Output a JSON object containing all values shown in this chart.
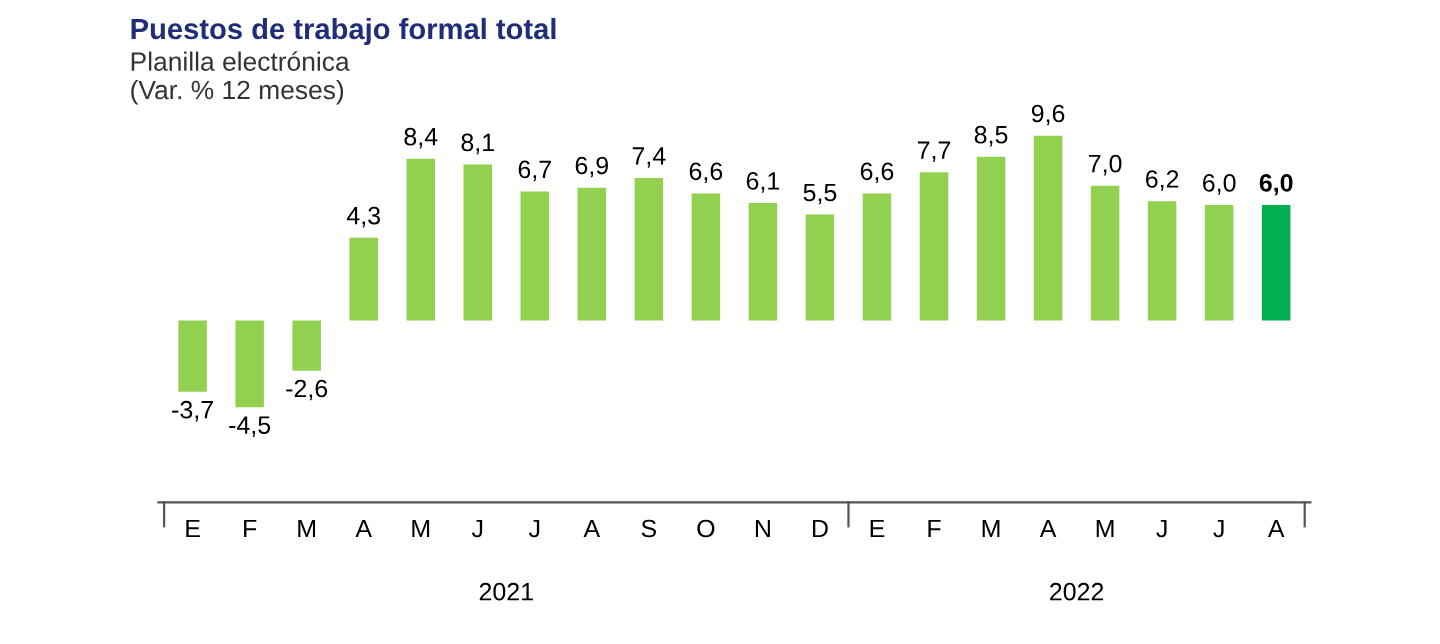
{
  "chart_data": {
    "type": "bar",
    "title": "Puestos de trabajo formal total",
    "subtitle": "Planilla electrónica\n(Var. % 12 meses)",
    "categories": [
      "E",
      "F",
      "M",
      "A",
      "M",
      "J",
      "J",
      "A",
      "S",
      "O",
      "N",
      "D",
      "E",
      "F",
      "M",
      "A",
      "M",
      "J",
      "J",
      "A"
    ],
    "values": [
      -3.7,
      -4.5,
      -2.6,
      4.3,
      8.4,
      8.1,
      6.7,
      6.9,
      7.4,
      6.6,
      6.1,
      5.5,
      6.6,
      7.7,
      8.5,
      9.6,
      7.0,
      6.2,
      6.0,
      6.0
    ],
    "value_labels": [
      "-3,7",
      "-4,5",
      "-2,6",
      "4,3",
      "8,4",
      "8,1",
      "6,7",
      "6,9",
      "7,4",
      "6,6",
      "6,1",
      "5,5",
      "6,6",
      "7,7",
      "8,5",
      "9,6",
      "7,0",
      "6,2",
      "6,0",
      "6,0"
    ],
    "colors": [
      "#92d050",
      "#92d050",
      "#92d050",
      "#92d050",
      "#92d050",
      "#92d050",
      "#92d050",
      "#92d050",
      "#92d050",
      "#92d050",
      "#92d050",
      "#92d050",
      "#92d050",
      "#92d050",
      "#92d050",
      "#92d050",
      "#92d050",
      "#92d050",
      "#92d050",
      "#00b050"
    ],
    "annotations": [
      "2021",
      "2022"
    ],
    "grid": false,
    "legend": false
  }
}
